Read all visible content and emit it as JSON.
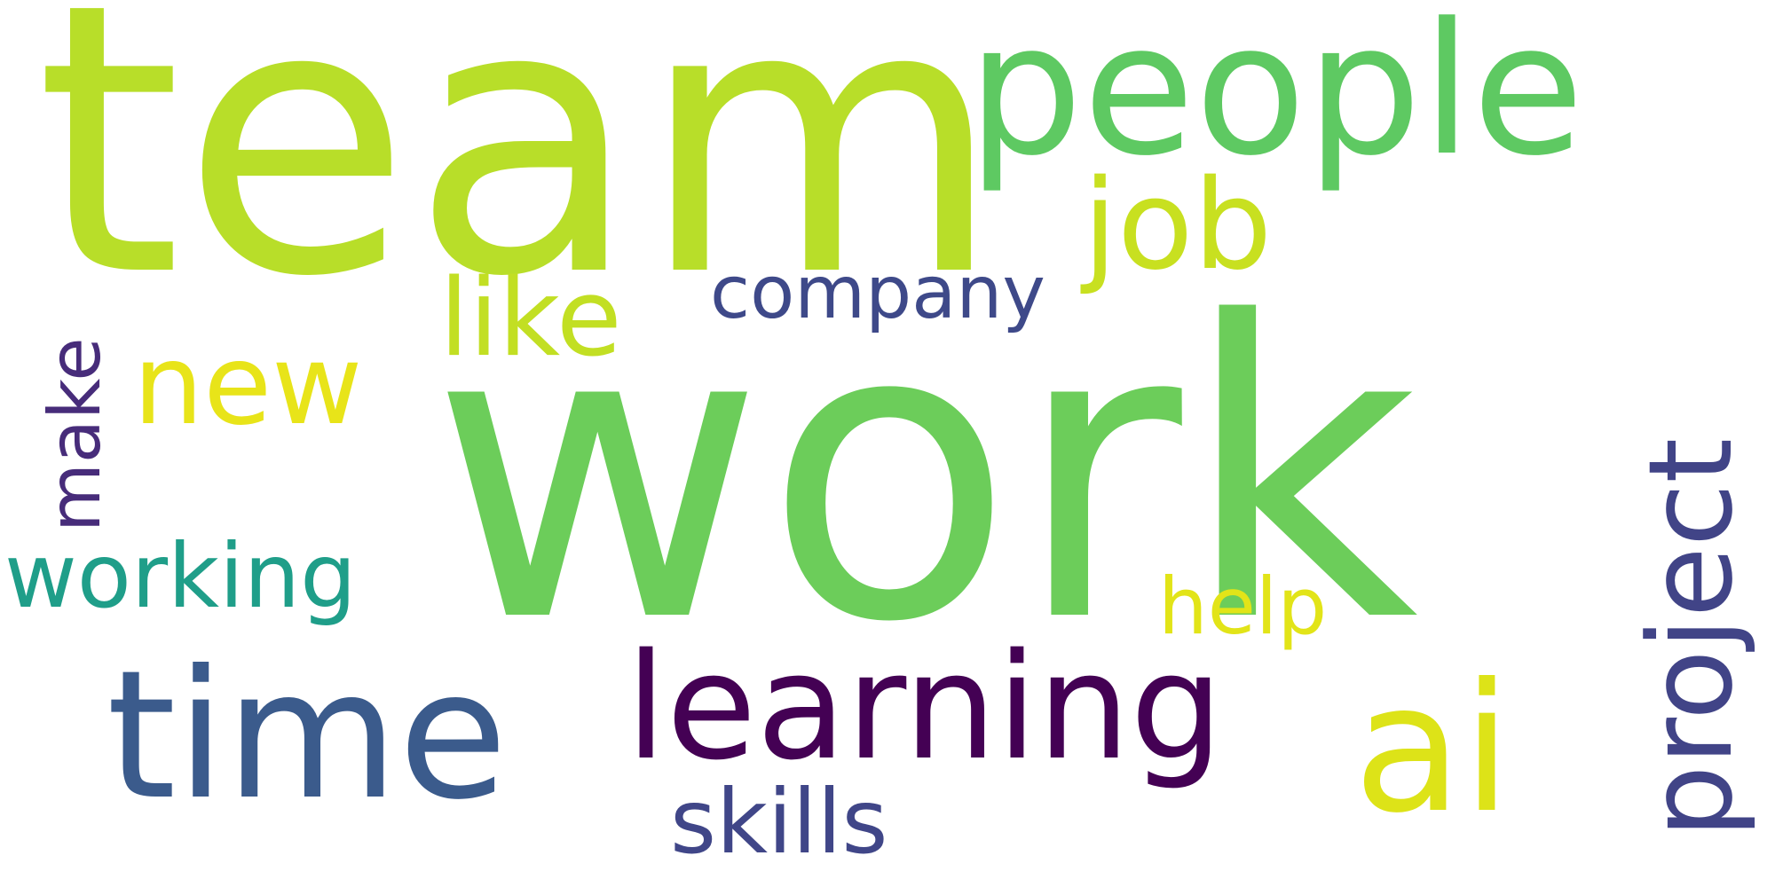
{
  "words": [
    {
      "text": "work",
      "color": "#6ccd5a"
    },
    {
      "text": "team",
      "color": "#b8de29"
    },
    {
      "text": "people",
      "color": "#5ec962"
    },
    {
      "text": "time",
      "color": "#3b5b8c"
    },
    {
      "text": "learning",
      "color": "#440154"
    },
    {
      "text": "ai",
      "color": "#dde318"
    },
    {
      "text": "project",
      "color": "#414487"
    },
    {
      "text": "job",
      "color": "#c8e020"
    },
    {
      "text": "like",
      "color": "#c2df23"
    },
    {
      "text": "company",
      "color": "#3e4989"
    },
    {
      "text": "new",
      "color": "#e8e419"
    },
    {
      "text": "make",
      "color": "#472c7a"
    },
    {
      "text": "working",
      "color": "#1f9e89"
    },
    {
      "text": "help",
      "color": "#e2e418"
    },
    {
      "text": "skills",
      "color": "#404688"
    }
  ]
}
